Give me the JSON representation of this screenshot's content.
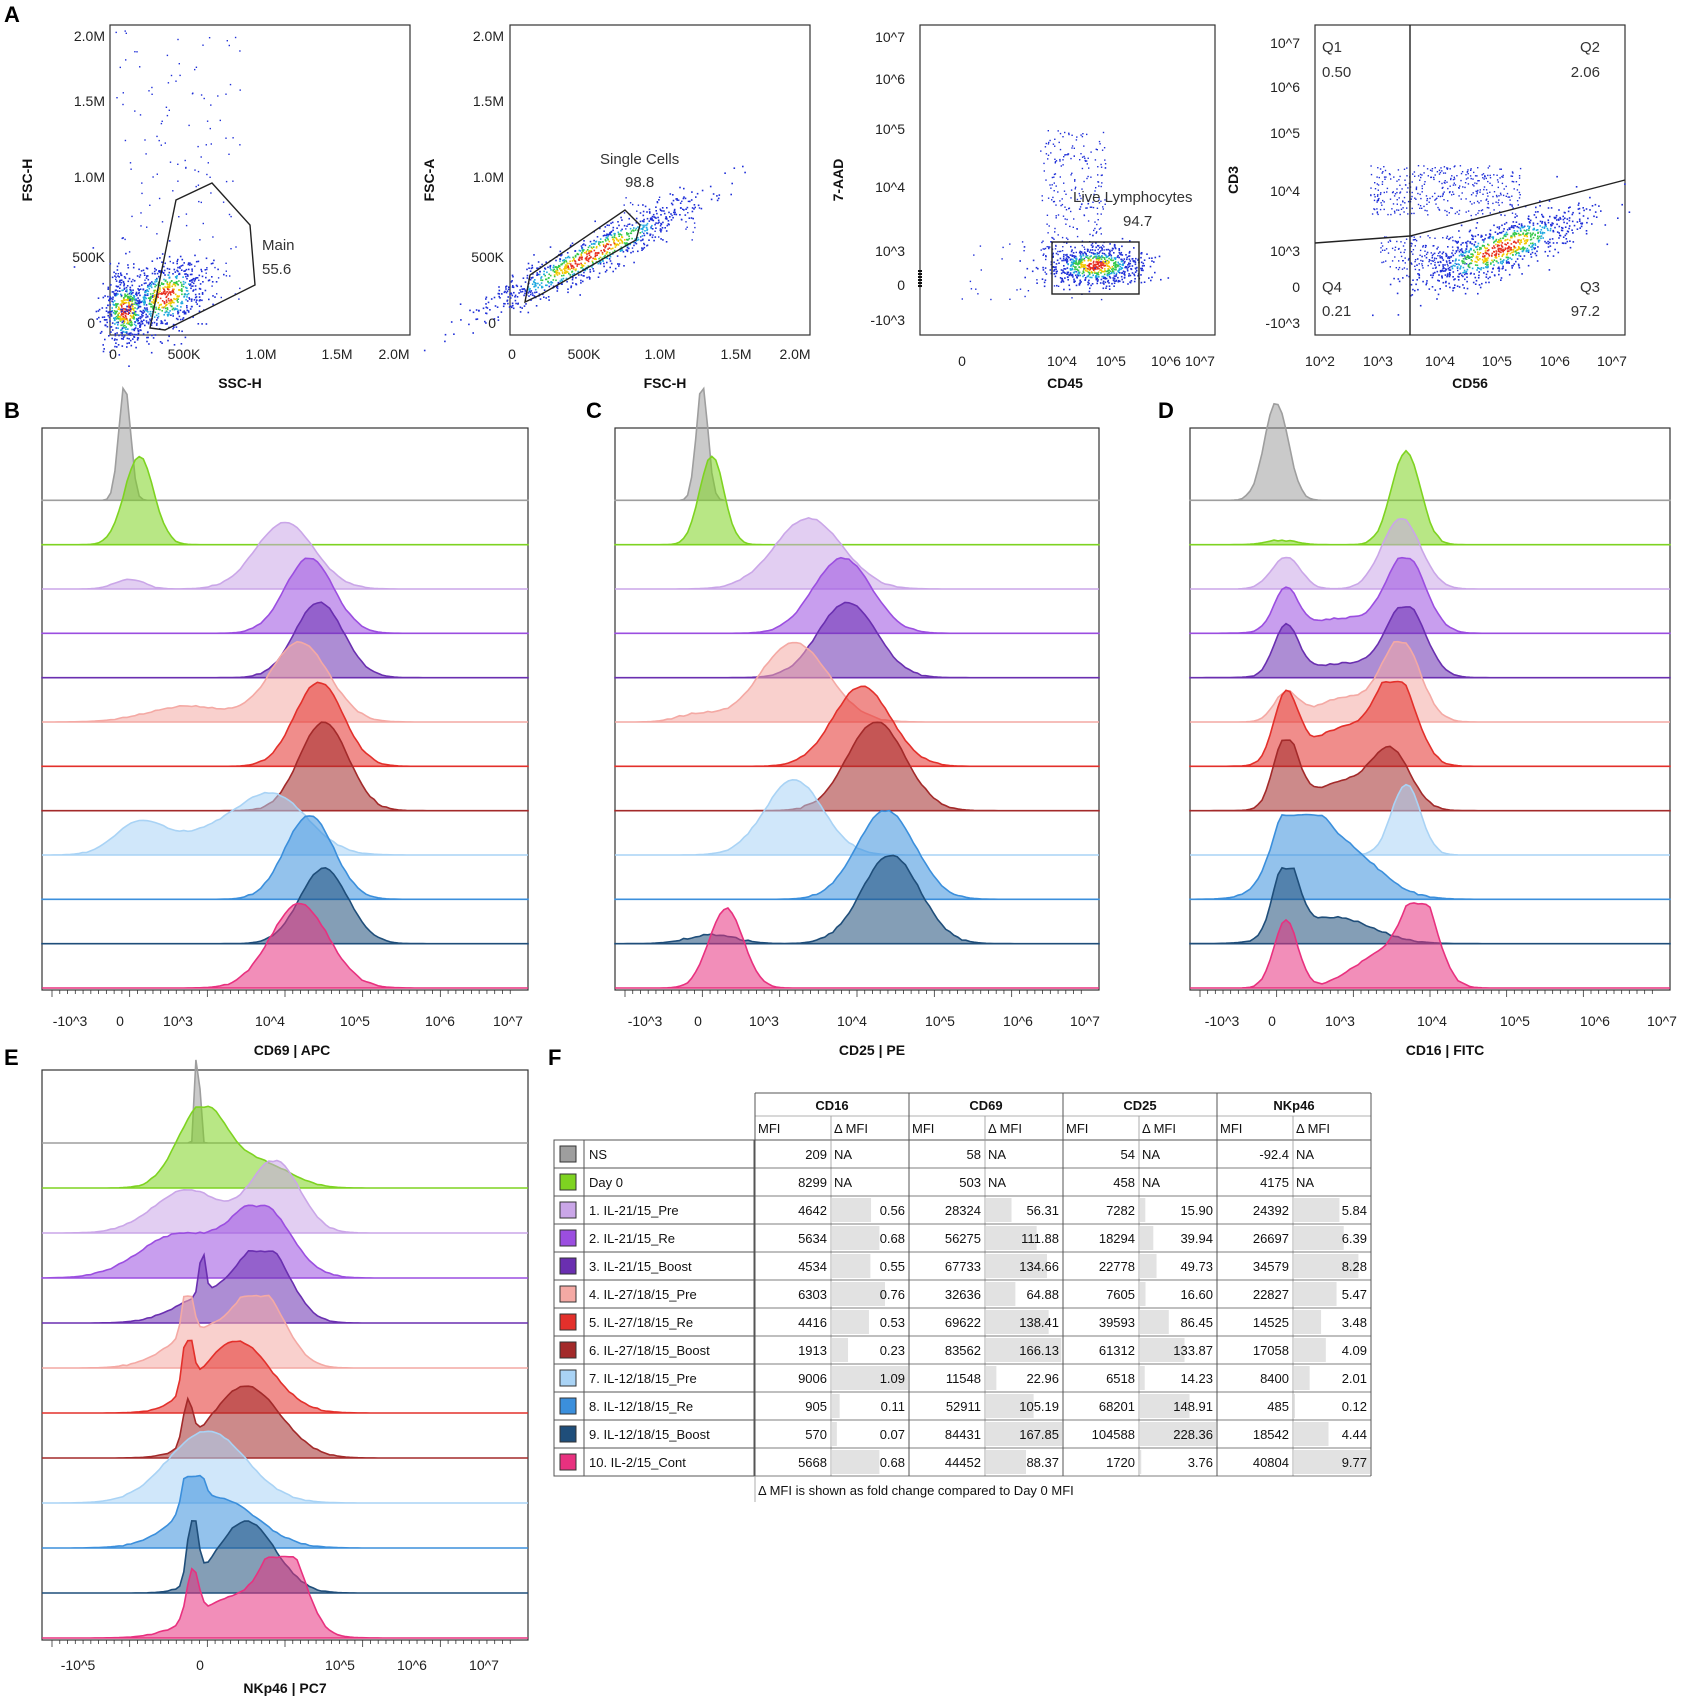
{
  "colors": {
    "NS": "#9e9e9e",
    "Day0": "#7ed321",
    "L1": "#caa6e8",
    "L2": "#9b4ee0",
    "L3": "#6a2fb0",
    "L4": "#f4a9a4",
    "L5": "#e3302b",
    "L6": "#a32a2a",
    "L7": "#a9d3f5",
    "L8": "#3b8fdc",
    "L9": "#1f4e7a",
    "L10": "#e8317f"
  },
  "panel_labels": {
    "A": "A",
    "B": "B",
    "C": "C",
    "D": "D",
    "E": "E",
    "F": "F"
  },
  "chart_data": [
    {
      "id": "A1",
      "type": "scatter",
      "xlabel": "SSC-H",
      "ylabel": "FSC-H",
      "xticks": [
        "0",
        "500K",
        "1.0M",
        "1.5M",
        "2.0M"
      ],
      "yticks": [
        "0",
        "500K",
        "1.0M",
        "1.5M",
        "2.0M"
      ],
      "xlim": [
        0,
        2100000
      ],
      "ylim": [
        0,
        2100000
      ],
      "gate": {
        "name": "Main",
        "value": "55.6"
      },
      "clusters": [
        {
          "x": 100000,
          "y": 80000
        },
        {
          "x": 400000,
          "y": 190000
        }
      ]
    },
    {
      "id": "A2",
      "type": "scatter",
      "xlabel": "FSC-H",
      "ylabel": "FSC-A",
      "xticks": [
        "0",
        "500K",
        "1.0M",
        "1.5M",
        "2.0M"
      ],
      "yticks": [
        "0",
        "500K",
        "1.0M",
        "1.5M",
        "2.0M"
      ],
      "xlim": [
        0,
        2100000
      ],
      "ylim": [
        0,
        2100000
      ],
      "gate": {
        "name": "Single Cells",
        "value": "98.8"
      }
    },
    {
      "id": "A3",
      "type": "scatter",
      "xlabel": "CD45",
      "ylabel": "7-AAD",
      "xticks": [
        "0",
        "10^4",
        "10^5",
        "10^6",
        "10^7"
      ],
      "yticks": [
        "-10^3",
        "0",
        "10^3",
        "10^4",
        "10^5",
        "10^6",
        "10^7"
      ],
      "gate": {
        "name": "Live Lymphocytes",
        "value": "94.7"
      }
    },
    {
      "id": "A4",
      "type": "scatter",
      "xlabel": "CD56",
      "ylabel": "CD3",
      "xticks": [
        "10^2",
        "10^3",
        "10^4",
        "10^5",
        "10^6",
        "10^7"
      ],
      "yticks": [
        "-10^3",
        "0",
        "10^3",
        "10^4",
        "10^5",
        "10^6",
        "10^7"
      ],
      "quadrants": [
        {
          "name": "Q1",
          "value": "0.50"
        },
        {
          "name": "Q2",
          "value": "2.06"
        },
        {
          "name": "Q3",
          "value": "97.2"
        },
        {
          "name": "Q4",
          "value": "0.21"
        }
      ]
    },
    {
      "id": "B",
      "type": "area",
      "xlabel": "CD69 | APC",
      "xticks": [
        "-10^3",
        "0",
        "10^3",
        "10^4",
        "10^5",
        "10^6",
        "10^7"
      ],
      "series_order": [
        "NS",
        "Day0",
        "L1",
        "L2",
        "L3",
        "L4",
        "L5",
        "L6",
        "L7",
        "L8",
        "L9",
        "L10"
      ]
    },
    {
      "id": "C",
      "type": "area",
      "xlabel": "CD25 | PE",
      "xticks": [
        "-10^3",
        "0",
        "10^3",
        "10^4",
        "10^5",
        "10^6",
        "10^7"
      ]
    },
    {
      "id": "D",
      "type": "area",
      "xlabel": "CD16 | FITC",
      "xticks": [
        "-10^3",
        "0",
        "10^3",
        "10^4",
        "10^5",
        "10^6",
        "10^7"
      ]
    },
    {
      "id": "E",
      "type": "area",
      "xlabel": "NKp46 | PC7",
      "xticks": [
        "-10^5",
        "0",
        "10^5",
        "10^6",
        "10^7"
      ]
    },
    {
      "id": "F",
      "type": "table",
      "groups": [
        "CD16",
        "CD69",
        "CD25",
        "NKp46"
      ],
      "subheaders": [
        "MFI",
        "Δ MFI"
      ],
      "rows": [
        {
          "key": "NS",
          "label": "NS",
          "vals": [
            "209",
            "NA",
            "58",
            "NA",
            "54",
            "NA",
            "-92.4",
            "NA"
          ]
        },
        {
          "key": "Day0",
          "label": "Day 0",
          "vals": [
            "8299",
            "NA",
            "503",
            "NA",
            "458",
            "NA",
            "4175",
            "NA"
          ]
        },
        {
          "key": "L1",
          "label": "1. IL-21/15_Pre",
          "vals": [
            "4642",
            "0.56",
            "28324",
            "56.31",
            "7282",
            "15.90",
            "24392",
            "5.84"
          ]
        },
        {
          "key": "L2",
          "label": "2. IL-21/15_Re",
          "vals": [
            "5634",
            "0.68",
            "56275",
            "111.88",
            "18294",
            "39.94",
            "26697",
            "6.39"
          ]
        },
        {
          "key": "L3",
          "label": "3. IL-21/15_Boost",
          "vals": [
            "4534",
            "0.55",
            "67733",
            "134.66",
            "22778",
            "49.73",
            "34579",
            "8.28"
          ]
        },
        {
          "key": "L4",
          "label": "4. IL-27/18/15_Pre",
          "vals": [
            "6303",
            "0.76",
            "32636",
            "64.88",
            "7605",
            "16.60",
            "22827",
            "5.47"
          ]
        },
        {
          "key": "L5",
          "label": "5. IL-27/18/15_Re",
          "vals": [
            "4416",
            "0.53",
            "69622",
            "138.41",
            "39593",
            "86.45",
            "14525",
            "3.48"
          ]
        },
        {
          "key": "L6",
          "label": "6. IL-27/18/15_Boost",
          "vals": [
            "1913",
            "0.23",
            "83562",
            "166.13",
            "61312",
            "133.87",
            "17058",
            "4.09"
          ]
        },
        {
          "key": "L7",
          "label": "7. IL-12/18/15_Pre",
          "vals": [
            "9006",
            "1.09",
            "11548",
            "22.96",
            "6518",
            "14.23",
            "8400",
            "2.01"
          ]
        },
        {
          "key": "L8",
          "label": "8. IL-12/18/15_Re",
          "vals": [
            "905",
            "0.11",
            "52911",
            "105.19",
            "68201",
            "148.91",
            "485",
            "0.12"
          ]
        },
        {
          "key": "L9",
          "label": "9. IL-12/18/15_Boost",
          "vals": [
            "570",
            "0.07",
            "84431",
            "167.85",
            "104588",
            "228.36",
            "18542",
            "4.44"
          ]
        },
        {
          "key": "L10",
          "label": "10. IL-2/15_Cont",
          "vals": [
            "5668",
            "0.68",
            "44452",
            "88.37",
            "1720",
            "3.76",
            "40804",
            "9.77"
          ]
        }
      ],
      "footnote": "Δ MFI is shown as fold change compared to Day 0 MFI"
    }
  ]
}
